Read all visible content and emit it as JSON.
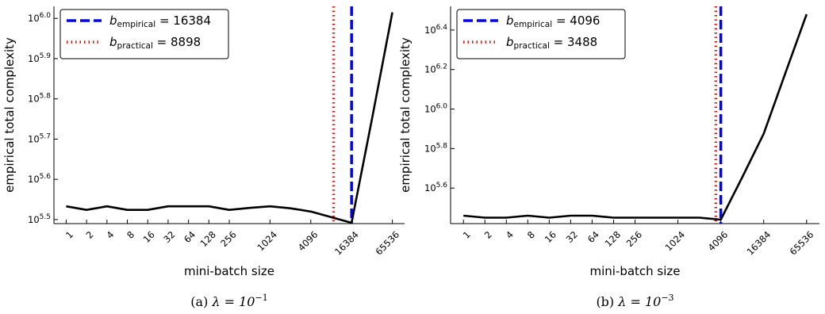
{
  "chart_data": [
    {
      "type": "line",
      "panel": "a",
      "caption_label": "(a)",
      "caption_lambda": "λ = 10",
      "caption_exp": "−1",
      "xlabel": "mini-batch size",
      "ylabel": "empirical total complexity",
      "yscale": "log10",
      "ylim": [
        5.49,
        6.03
      ],
      "x_categories": [
        "1",
        "2",
        "4",
        "8",
        "16",
        "32",
        "64",
        "128",
        "256",
        "1024",
        "4096",
        "16384",
        "65536"
      ],
      "x_log2_positions": [
        0,
        1,
        2,
        3,
        4,
        5,
        6,
        7,
        8,
        10,
        12,
        14,
        16
      ],
      "x_log2_range": [
        -0.6,
        16.6
      ],
      "y_ticks": [
        {
          "value": 5.5,
          "base": "10",
          "exp": "5.5"
        },
        {
          "value": 5.6,
          "base": "10",
          "exp": "5.6"
        },
        {
          "value": 5.7,
          "base": "10",
          "exp": "5.7"
        },
        {
          "value": 5.8,
          "base": "10",
          "exp": "5.8"
        },
        {
          "value": 5.9,
          "base": "10",
          "exp": "5.9"
        },
        {
          "value": 6.0,
          "base": "10",
          "exp": "6.0"
        }
      ],
      "series": [
        {
          "x_log2": [
            0,
            1,
            2,
            3,
            4,
            5,
            6,
            7,
            8,
            9,
            10,
            11,
            12,
            13,
            14,
            15,
            16
          ],
          "log10_y": [
            5.533,
            5.524,
            5.533,
            5.524,
            5.524,
            5.533,
            5.533,
            5.533,
            5.524,
            5.529,
            5.533,
            5.528,
            5.52,
            5.506,
            5.492,
            5.75,
            6.015
          ],
          "color": "#000000"
        }
      ],
      "vlines": [
        {
          "key": "practical",
          "x": 8898,
          "color": "#ff0000",
          "style": "dotted",
          "legend_var": "b",
          "legend_sub": "practical",
          "legend_value": "= 8898"
        },
        {
          "key": "empirical",
          "x": 16384,
          "color": "#0000ff",
          "style": "dashed",
          "legend_var": "b",
          "legend_sub": "empirical",
          "legend_value": "= 16384"
        }
      ],
      "legend_position": "top-left"
    },
    {
      "type": "line",
      "panel": "b",
      "caption_label": "(b)",
      "caption_lambda": "λ = 10",
      "caption_exp": "−3",
      "xlabel": "mini-batch size",
      "ylabel": "empirical total complexity",
      "yscale": "log10",
      "ylim": [
        5.42,
        6.52
      ],
      "x_categories": [
        "1",
        "2",
        "4",
        "8",
        "16",
        "32",
        "64",
        "128",
        "256",
        "1024",
        "4096",
        "16384",
        "65536"
      ],
      "x_log2_positions": [
        0,
        1,
        2,
        3,
        4,
        5,
        6,
        7,
        8,
        10,
        12,
        14,
        16
      ],
      "x_log2_range": [
        -0.6,
        16.6
      ],
      "y_ticks": [
        {
          "value": 5.6,
          "base": "10",
          "exp": "5.6"
        },
        {
          "value": 5.8,
          "base": "10",
          "exp": "5.8"
        },
        {
          "value": 6.0,
          "base": "10",
          "exp": "6.0"
        },
        {
          "value": 6.2,
          "base": "10",
          "exp": "6.2"
        },
        {
          "value": 6.4,
          "base": "10",
          "exp": "6.4"
        }
      ],
      "series": [
        {
          "x_log2": [
            0,
            1,
            2,
            3,
            4,
            5,
            6,
            7,
            8,
            9,
            10,
            11,
            12,
            13,
            14,
            15,
            16
          ],
          "log10_y": [
            5.46,
            5.45,
            5.45,
            5.46,
            5.45,
            5.46,
            5.46,
            5.45,
            5.45,
            5.45,
            5.45,
            5.45,
            5.44,
            5.655,
            5.875,
            6.178,
            6.48
          ],
          "color": "#000000"
        }
      ],
      "vlines": [
        {
          "key": "practical",
          "x": 3488,
          "color": "#ff0000",
          "style": "dotted",
          "legend_var": "b",
          "legend_sub": "practical",
          "legend_value": "= 3488"
        },
        {
          "key": "empirical",
          "x": 4096,
          "color": "#0000ff",
          "style": "dashed",
          "legend_var": "b",
          "legend_sub": "empirical",
          "legend_value": "= 4096"
        }
      ],
      "legend_position": "top-left"
    }
  ]
}
